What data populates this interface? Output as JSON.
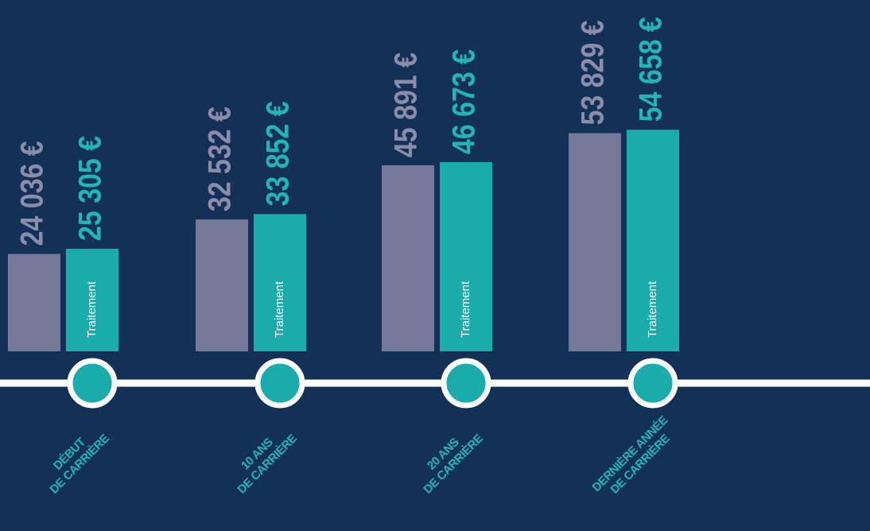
{
  "chart_data": {
    "type": "bar",
    "categories": [
      [
        "DÉBUT",
        "DE CARRIÈRE"
      ],
      [
        "10 ANS",
        "DE CARRIÈRE"
      ],
      [
        "20 ANS",
        "DE CARRIÈRE"
      ],
      [
        "DERNIÈRE ANNÉE",
        "DE CARRIÈRE"
      ]
    ],
    "series": [
      {
        "color": "#757896",
        "values": [
          24036,
          32532,
          45891,
          53829
        ],
        "value_labels": [
          "24 036 €",
          "32 532 €",
          "45 891 €",
          "53 829 €"
        ]
      },
      {
        "name": "Traitement",
        "color": "#1aabab",
        "values": [
          25305,
          33852,
          46673,
          54658
        ],
        "value_labels": [
          "25 305 €",
          "33 852 €",
          "46 673 €",
          "54 658 €"
        ]
      }
    ],
    "ylim": [
      0,
      60000
    ]
  }
}
